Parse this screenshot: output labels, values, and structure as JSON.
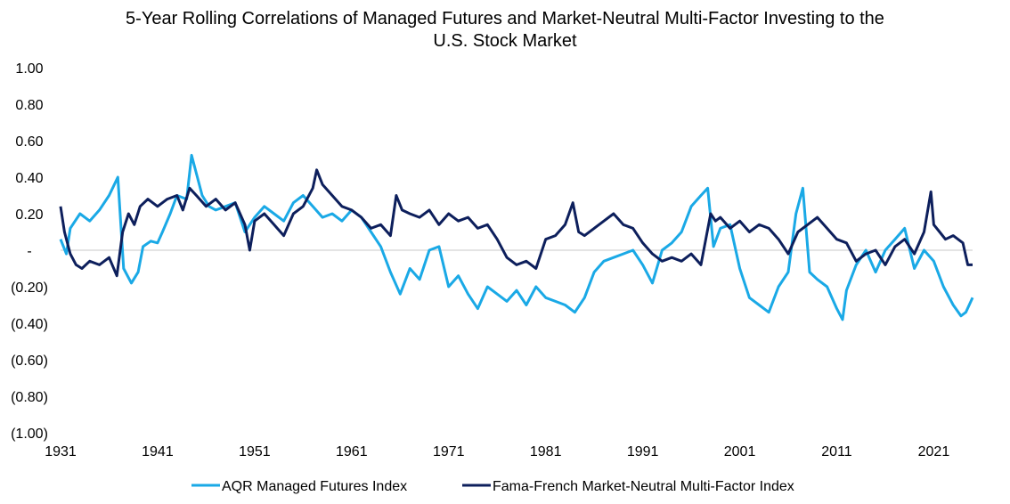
{
  "chart_data": {
    "type": "line",
    "title": [
      "5-Year Rolling Correlations of Managed Futures and Market-Neutral Multi-Factor Investing to the",
      "U.S. Stock Market"
    ],
    "xlabel": "",
    "ylabel": "",
    "xlim": [
      1931,
      2025
    ],
    "ylim": [
      -1.0,
      1.0
    ],
    "x_ticks": [
      1931,
      1941,
      1951,
      1961,
      1971,
      1981,
      1991,
      2001,
      2011,
      2021
    ],
    "x_tick_labels": [
      "1931",
      "1941",
      "1951",
      "1961",
      "1971",
      "1981",
      "1991",
      "2001",
      "2011",
      "2021"
    ],
    "y_ticks": [
      1.0,
      0.8,
      0.6,
      0.4,
      0.2,
      0.0,
      -0.2,
      -0.4,
      -0.6,
      -0.8,
      -1.0
    ],
    "y_tick_labels": [
      "1.00",
      "0.80",
      "0.60",
      "0.40",
      "0.20",
      "-",
      "(0.20)",
      "(0.40)",
      "(0.60)",
      "(0.80)",
      "(1.00)"
    ],
    "grid": false,
    "legend_position": "bottom",
    "series": [
      {
        "name": "AQR Managed Futures Index",
        "color": "#1aa9e6",
        "x": [
          1931,
          1931.6,
          1932,
          1933,
          1934,
          1935,
          1936,
          1936.9,
          1937.5,
          1938.3,
          1939,
          1939.5,
          1940.3,
          1941,
          1941.5,
          1942.3,
          1943,
          1944,
          1944.5,
          1945.6,
          1946.3,
          1947,
          1948,
          1949,
          1950,
          1951,
          1952,
          1953,
          1954,
          1955,
          1956,
          1957,
          1958,
          1959,
          1960,
          1961,
          1962,
          1963,
          1964,
          1965,
          1966,
          1967,
          1968,
          1969,
          1970,
          1971,
          1972,
          1973,
          1974,
          1975,
          1976,
          1977,
          1978,
          1979,
          1980,
          1981,
          1982,
          1983,
          1984,
          1985,
          1986,
          1987,
          1988,
          1989,
          1990,
          1991,
          1992,
          1993,
          1994,
          1995,
          1996,
          1997,
          1997.7,
          1998.3,
          1999,
          2000,
          2001,
          2002,
          2003,
          2004,
          2005,
          2006,
          2006.8,
          2007.5,
          2008.2,
          2009,
          2010,
          2011,
          2011.6,
          2012,
          2013,
          2014,
          2015,
          2016,
          2017,
          2018,
          2019,
          2020,
          2021,
          2022,
          2023,
          2023.8,
          2024.3,
          2025
        ],
        "y": [
          0.06,
          -0.02,
          0.12,
          0.2,
          0.16,
          0.22,
          0.3,
          0.4,
          -0.1,
          -0.18,
          -0.12,
          0.02,
          0.05,
          0.04,
          0.1,
          0.2,
          0.3,
          0.28,
          0.52,
          0.3,
          0.24,
          0.22,
          0.24,
          0.26,
          0.1,
          0.18,
          0.24,
          0.2,
          0.16,
          0.26,
          0.3,
          0.24,
          0.18,
          0.2,
          0.16,
          0.22,
          0.18,
          0.1,
          0.02,
          -0.12,
          -0.24,
          -0.1,
          -0.16,
          0.0,
          0.02,
          -0.2,
          -0.14,
          -0.24,
          -0.32,
          -0.2,
          -0.24,
          -0.28,
          -0.22,
          -0.3,
          -0.2,
          -0.26,
          -0.28,
          -0.3,
          -0.34,
          -0.26,
          -0.12,
          -0.06,
          -0.04,
          -0.02,
          0.0,
          -0.08,
          -0.18,
          0.0,
          0.04,
          0.1,
          0.24,
          0.3,
          0.34,
          0.02,
          0.12,
          0.14,
          -0.1,
          -0.26,
          -0.3,
          -0.34,
          -0.2,
          -0.12,
          0.2,
          0.34,
          -0.12,
          -0.16,
          -0.2,
          -0.32,
          -0.38,
          -0.22,
          -0.08,
          0.0,
          -0.12,
          0.0,
          0.06,
          0.12,
          -0.1,
          0.0,
          -0.06,
          -0.2,
          -0.3,
          -0.36,
          -0.34,
          -0.26
        ]
      },
      {
        "name": "Fama-French Market-Neutral Multi-Factor Index",
        "color": "#0d1f5c",
        "x": [
          1931,
          1931.4,
          1932,
          1932.6,
          1933.2,
          1934,
          1935,
          1936,
          1936.8,
          1937.4,
          1938,
          1938.6,
          1939.2,
          1940,
          1941,
          1942,
          1943,
          1943.6,
          1944.3,
          1945,
          1946,
          1947,
          1948,
          1949,
          1950,
          1950.5,
          1951,
          1952,
          1953,
          1954,
          1955,
          1956,
          1957,
          1957.4,
          1958,
          1959,
          1960,
          1961,
          1962,
          1963,
          1964,
          1965,
          1965.6,
          1966.2,
          1967,
          1968,
          1969,
          1970,
          1971,
          1972,
          1973,
          1974,
          1975,
          1976,
          1977,
          1978,
          1979,
          1980,
          1981,
          1982,
          1983,
          1983.8,
          1984.4,
          1985,
          1986,
          1987,
          1988,
          1989,
          1990,
          1991,
          1992,
          1993,
          1994,
          1995,
          1996,
          1997,
          1998,
          1998.5,
          1999,
          2000,
          2001,
          2002,
          2003,
          2004,
          2005,
          2006,
          2007,
          2008,
          2009,
          2010,
          2011,
          2012,
          2013,
          2014,
          2015,
          2016,
          2017,
          2018,
          2019,
          2020,
          2020.7,
          2021,
          2021.6,
          2022.2,
          2023,
          2024,
          2024.5,
          2025
        ],
        "y": [
          0.24,
          0.1,
          -0.02,
          -0.08,
          -0.1,
          -0.06,
          -0.08,
          -0.04,
          -0.14,
          0.1,
          0.2,
          0.14,
          0.24,
          0.28,
          0.24,
          0.28,
          0.3,
          0.22,
          0.34,
          0.3,
          0.24,
          0.28,
          0.22,
          0.26,
          0.14,
          0.0,
          0.16,
          0.2,
          0.14,
          0.08,
          0.2,
          0.24,
          0.34,
          0.44,
          0.36,
          0.3,
          0.24,
          0.22,
          0.18,
          0.12,
          0.14,
          0.08,
          0.3,
          0.22,
          0.2,
          0.18,
          0.22,
          0.14,
          0.2,
          0.16,
          0.18,
          0.12,
          0.14,
          0.06,
          -0.04,
          -0.08,
          -0.06,
          -0.1,
          0.06,
          0.08,
          0.14,
          0.26,
          0.1,
          0.08,
          0.12,
          0.16,
          0.2,
          0.14,
          0.12,
          0.04,
          -0.02,
          -0.06,
          -0.04,
          -0.06,
          -0.02,
          -0.08,
          0.2,
          0.16,
          0.18,
          0.12,
          0.16,
          0.1,
          0.14,
          0.12,
          0.06,
          -0.02,
          0.1,
          0.14,
          0.18,
          0.12,
          0.06,
          0.04,
          -0.06,
          -0.02,
          0.0,
          -0.08,
          0.02,
          0.06,
          -0.02,
          0.1,
          0.32,
          0.14,
          0.1,
          0.06,
          0.08,
          0.04,
          -0.08,
          -0.08
        ]
      }
    ]
  }
}
